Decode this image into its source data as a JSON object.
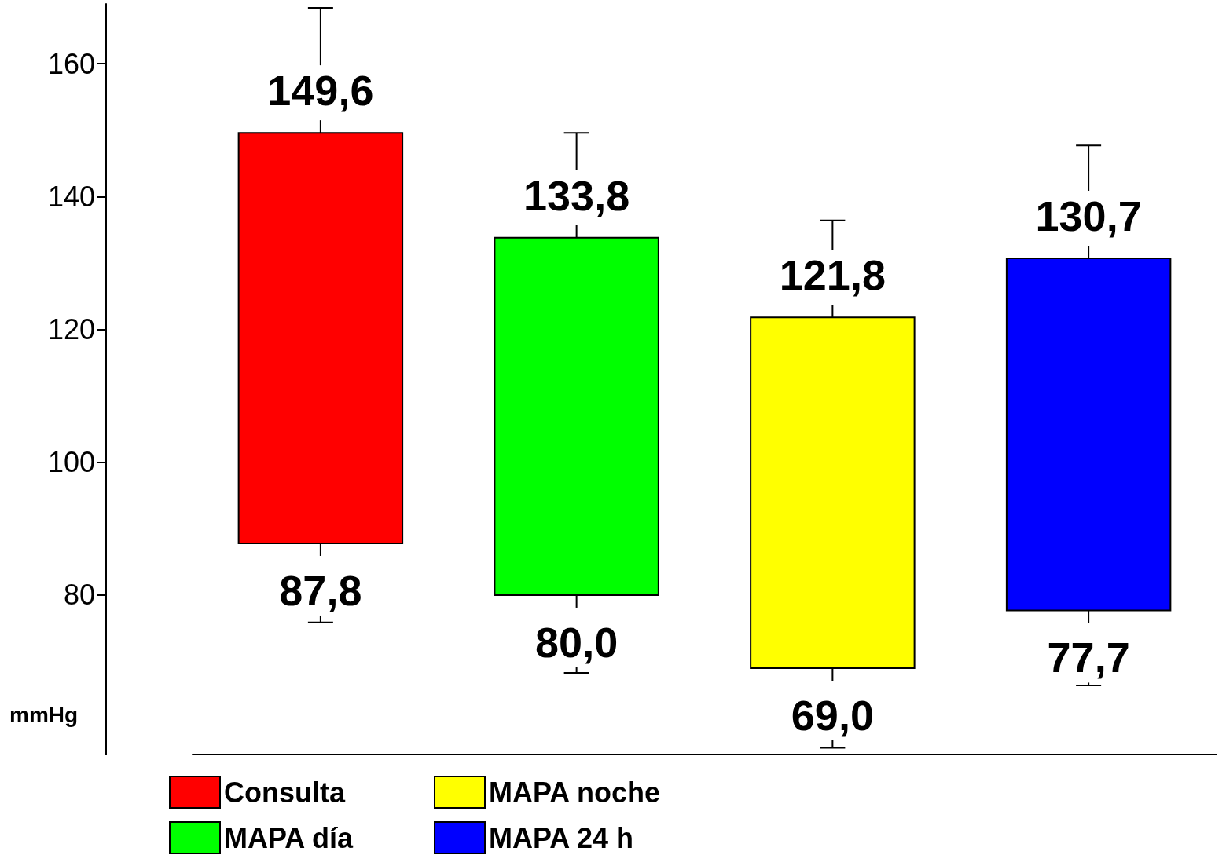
{
  "chart_data": {
    "type": "bar",
    "ylabel": "mmHg",
    "categories": [
      null,
      null,
      null,
      null
    ],
    "series": [
      {
        "name": "Consulta",
        "color": "#ff0000",
        "values": [
          61.8,
          null,
          null,
          null
        ],
        "base": [
          87.8,
          null,
          null,
          null
        ],
        "errors": [
          [
            75.9,
            168.4
          ],
          null,
          null,
          null
        ],
        "value_labels": [
          "149,6",
          null,
          null,
          null
        ]
      },
      {
        "name": "MAPA día",
        "color": "#00ff00",
        "values": [
          null,
          53.8,
          null,
          null
        ],
        "base": [
          null,
          80.0,
          null,
          null
        ],
        "errors": [
          null,
          [
            68.3,
            149.6
          ],
          null,
          null
        ],
        "value_labels": [
          null,
          "133,8",
          null,
          null
        ]
      },
      {
        "name": "MAPA noche",
        "color": "#ffff00",
        "values": [
          null,
          null,
          52.8,
          null
        ],
        "base": [
          null,
          null,
          69.0,
          null
        ],
        "errors": [
          null,
          null,
          [
            57.0,
            136.4
          ],
          null
        ],
        "value_labels": [
          null,
          null,
          "121,8",
          null
        ]
      },
      {
        "name": "MAPA 24 h",
        "color": "#0000ff",
        "values": [
          null,
          null,
          null,
          53.0
        ],
        "base": [
          null,
          null,
          null,
          77.7
        ],
        "errors": [
          null,
          null,
          null,
          [
            66.4,
            147.7
          ]
        ],
        "value_labels": [
          null,
          null,
          null,
          "130,7"
        ]
      }
    ],
    "annotations": [
      {
        "text": "87,8",
        "y": 87.8
      },
      {
        "text": "80,0",
        "y": 80.0
      },
      {
        "text": "69,0",
        "y": 69.0
      },
      {
        "text": "77,7",
        "y": 77.7
      }
    ],
    "ylim": [
      56,
      169
    ],
    "yticks": [
      80,
      100,
      120,
      140,
      160
    ],
    "grid": false,
    "legend": "bottom"
  }
}
